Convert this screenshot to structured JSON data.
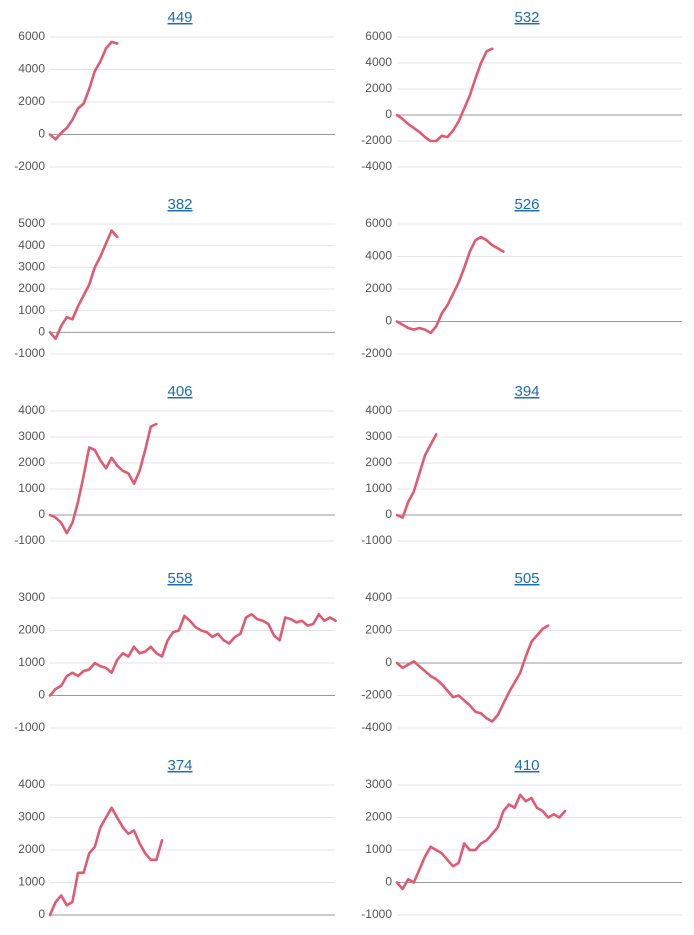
{
  "chart_data": [
    {
      "type": "line",
      "title": "449",
      "color": "#e05a72",
      "ylim": [
        -2000,
        6000
      ],
      "yticks": [
        -2000,
        0,
        2000,
        4000,
        6000
      ],
      "values": [
        0,
        -300,
        100,
        400,
        900,
        1600,
        1900,
        2800,
        3900,
        4500,
        5300,
        5700,
        5600
      ]
    },
    {
      "type": "line",
      "title": "532",
      "color": "#e05a72",
      "ylim": [
        -4000,
        6000
      ],
      "yticks": [
        -4000,
        -2000,
        0,
        2000,
        4000,
        6000
      ],
      "values": [
        0,
        -300,
        -700,
        -1000,
        -1300,
        -1700,
        -2000,
        -2000,
        -1600,
        -1700,
        -1200,
        -500,
        500,
        1500,
        2800,
        4000,
        4900,
        5100
      ]
    },
    {
      "type": "line",
      "title": "382",
      "color": "#e05a72",
      "ylim": [
        -1000,
        5000
      ],
      "yticks": [
        -1000,
        0,
        1000,
        2000,
        3000,
        4000,
        5000
      ],
      "values": [
        0,
        -300,
        300,
        700,
        600,
        1200,
        1700,
        2200,
        3000,
        3500,
        4100,
        4700,
        4400
      ]
    },
    {
      "type": "line",
      "title": "526",
      "color": "#e05a72",
      "ylim": [
        -2000,
        6000
      ],
      "yticks": [
        -2000,
        0,
        2000,
        4000,
        6000
      ],
      "values": [
        0,
        -200,
        -400,
        -500,
        -400,
        -500,
        -700,
        -300,
        500,
        1000,
        1700,
        2400,
        3300,
        4300,
        5000,
        5200,
        5000,
        4700,
        4500,
        4300
      ]
    },
    {
      "type": "line",
      "title": "406",
      "color": "#e05a72",
      "ylim": [
        -1000,
        4000
      ],
      "yticks": [
        -1000,
        0,
        1000,
        2000,
        3000,
        4000
      ],
      "values": [
        0,
        -100,
        -300,
        -700,
        -300,
        500,
        1500,
        2600,
        2500,
        2100,
        1800,
        2200,
        1900,
        1700,
        1600,
        1200,
        1700,
        2500,
        3400,
        3500
      ]
    },
    {
      "type": "line",
      "title": "394",
      "color": "#e05a72",
      "ylim": [
        -1000,
        4000
      ],
      "yticks": [
        -1000,
        0,
        1000,
        2000,
        3000,
        4000
      ],
      "values": [
        0,
        -100,
        500,
        900,
        1600,
        2300,
        2700,
        3100
      ]
    },
    {
      "type": "line",
      "title": "558",
      "color": "#e05a72",
      "ylim": [
        -1000,
        3000
      ],
      "yticks": [
        -1000,
        0,
        1000,
        2000,
        3000
      ],
      "values": [
        0,
        200,
        300,
        600,
        700,
        600,
        750,
        800,
        1000,
        900,
        850,
        700,
        1100,
        1300,
        1200,
        1500,
        1300,
        1350,
        1500,
        1300,
        1200,
        1700,
        1950,
        2000,
        2450,
        2300,
        2100,
        2000,
        1950,
        1800,
        1900,
        1700,
        1600,
        1800,
        1900,
        2400,
        2500,
        2350,
        2300,
        2200,
        1850,
        1700,
        2400,
        2350,
        2250,
        2300,
        2150,
        2200,
        2500,
        2300,
        2400,
        2300
      ]
    },
    {
      "type": "line",
      "title": "505",
      "color": "#e05a72",
      "ylim": [
        -4000,
        4000
      ],
      "yticks": [
        -4000,
        -2000,
        0,
        2000,
        4000
      ],
      "values": [
        0,
        -300,
        -100,
        100,
        -200,
        -500,
        -800,
        -1000,
        -1300,
        -1700,
        -2100,
        -2000,
        -2300,
        -2600,
        -3000,
        -3100,
        -3400,
        -3600,
        -3200,
        -2500,
        -1800,
        -1200,
        -600,
        400,
        1300,
        1700,
        2100,
        2300
      ]
    },
    {
      "type": "line",
      "title": "374",
      "color": "#e05a72",
      "ylim": [
        0,
        4000
      ],
      "yticks": [
        0,
        1000,
        2000,
        3000,
        4000
      ],
      "values": [
        0,
        400,
        600,
        300,
        400,
        1300,
        1300,
        1900,
        2100,
        2700,
        3000,
        3300,
        3000,
        2700,
        2500,
        2600,
        2200,
        1900,
        1700,
        1700,
        2300
      ]
    },
    {
      "type": "line",
      "title": "410",
      "color": "#e05a72",
      "ylim": [
        -1000,
        3000
      ],
      "yticks": [
        -1000,
        0,
        1000,
        2000,
        3000
      ],
      "values": [
        0,
        -200,
        100,
        0,
        400,
        800,
        1100,
        1000,
        900,
        700,
        500,
        600,
        1200,
        1000,
        1000,
        1200,
        1300,
        1500,
        1700,
        2200,
        2400,
        2300,
        2700,
        2500,
        2600,
        2300,
        2200,
        2000,
        2100,
        2000,
        2200
      ]
    }
  ]
}
